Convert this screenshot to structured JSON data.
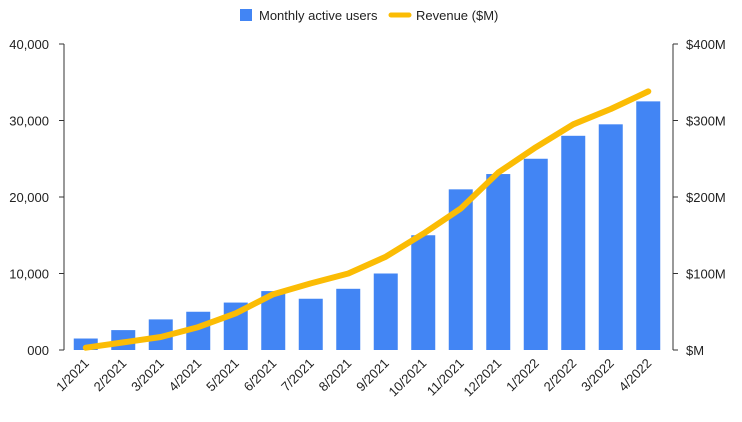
{
  "colors": {
    "bar": "#4285f4",
    "line": "#fbbc04",
    "axis": "#333333",
    "text": "#222222"
  },
  "chart_data": {
    "type": "bar",
    "title": "",
    "xlabel": "",
    "ylabel": "",
    "legend_position": "top",
    "grid": false,
    "categories": [
      "1/2021",
      "2/2021",
      "3/2021",
      "4/2021",
      "5/2021",
      "6/2021",
      "7/2021",
      "8/2021",
      "9/2021",
      "10/2021",
      "11/2021",
      "12/2021",
      "1/2022",
      "2/2022",
      "3/2022",
      "4/2022"
    ],
    "series": [
      {
        "name": "Monthly active users",
        "type": "bar",
        "axis": "left",
        "values": [
          1500,
          2600,
          4000,
          5000,
          6200,
          7700,
          6700,
          8000,
          10000,
          15000,
          21000,
          23000,
          25000,
          28000,
          29500,
          32500
        ]
      },
      {
        "name": "Revenue ($M)",
        "type": "line",
        "axis": "right",
        "values": [
          3,
          10,
          17,
          30,
          48,
          73,
          87,
          100,
          122,
          152,
          185,
          232,
          265,
          295,
          315,
          338
        ]
      }
    ],
    "left_axis": {
      "ylim": [
        0,
        40000
      ],
      "ticks": [
        0,
        10000,
        20000,
        30000,
        40000
      ],
      "tick_labels": [
        "000",
        "10,000",
        "20,000",
        "30,000",
        "40,000"
      ]
    },
    "right_axis": {
      "ylim": [
        0,
        400
      ],
      "ticks": [
        0,
        100,
        200,
        300,
        400
      ],
      "tick_labels": [
        "$M",
        "$100M",
        "$200M",
        "$300M",
        "$400M"
      ]
    }
  }
}
